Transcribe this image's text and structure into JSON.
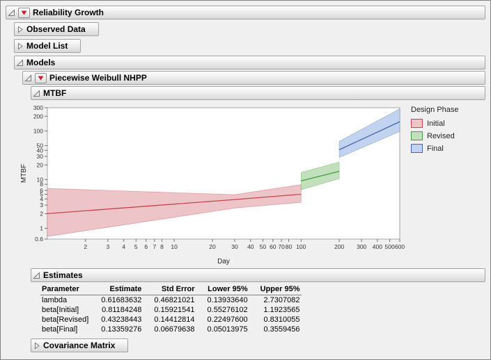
{
  "outline": {
    "reliability_growth": "Reliability Growth",
    "observed_data": "Observed Data",
    "model_list": "Model List",
    "models": "Models",
    "piecewise": "Piecewise Weibull NHPP",
    "mtbf": "MTBF",
    "estimates": "Estimates",
    "covariance": "Covariance Matrix"
  },
  "chart_data": {
    "type": "line",
    "title": "",
    "xlabel": "Day",
    "ylabel": "MTBF",
    "x_scale": "log",
    "y_scale": "log",
    "xlim": [
      1,
      600
    ],
    "ylim": [
      0.6,
      300
    ],
    "x_ticks": [
      2,
      3,
      4,
      5,
      6,
      7,
      8,
      10,
      20,
      30,
      40,
      50,
      60,
      70,
      80,
      100,
      200,
      300,
      400,
      500,
      600
    ],
    "y_ticks": [
      0.6,
      1,
      2,
      3,
      4,
      5,
      6,
      8,
      10,
      20,
      30,
      40,
      50,
      100,
      200,
      300
    ],
    "grid": false,
    "legend_title": "Design Phase",
    "legend_position": "right",
    "series": [
      {
        "name": "Initial",
        "color": "#c8454b",
        "fill": "#edc4c7",
        "x": [
          1,
          30,
          100
        ],
        "y": [
          2.0,
          3.9,
          5.0
        ],
        "lower": [
          0.68,
          2.6,
          3.4
        ],
        "upper": [
          6.6,
          4.9,
          7.9
        ]
      },
      {
        "name": "Revised",
        "color": "#3f9c3f",
        "fill": "#c3e0bd",
        "x": [
          100,
          200
        ],
        "y": [
          9.4,
          14.8
        ],
        "lower": [
          6.2,
          10.5
        ],
        "upper": [
          14,
          23
        ]
      },
      {
        "name": "Final",
        "color": "#4166b0",
        "fill": "#c1d3ef",
        "x": [
          200,
          600
        ],
        "y": [
          41,
          155
        ],
        "lower": [
          28.5,
          97
        ],
        "upper": [
          61,
          285
        ]
      }
    ]
  },
  "estimates_table": {
    "columns": [
      "Parameter",
      "Estimate",
      "Std Error",
      "Lower 95%",
      "Upper 95%"
    ],
    "rows": [
      [
        "lambda",
        "0.61683632",
        "0.46821021",
        "0.13933640",
        "2.7307082"
      ],
      [
        "beta[Initial]",
        "0.81184248",
        "0.15921541",
        "0.55276102",
        "1.1923565"
      ],
      [
        "beta[Revised]",
        "0.43238443",
        "0.14412814",
        "0.22497600",
        "0.8310055"
      ],
      [
        "beta[Final]",
        "0.13359276",
        "0.06679638",
        "0.05013975",
        "0.3559456"
      ]
    ]
  }
}
